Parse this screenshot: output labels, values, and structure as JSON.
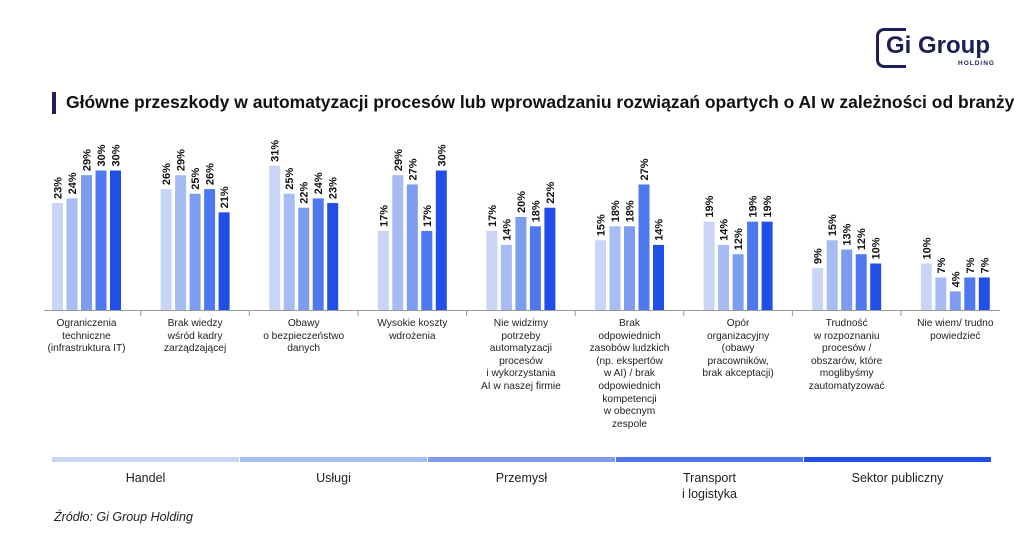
{
  "title": "Główne przeszkody w automatyzacji procesów lub wprowadzaniu rozwiązań opartych o AI w zależności od branży",
  "logo": {
    "text": "Gi Group",
    "sub": "HOLDING"
  },
  "source": "Źródło: Gi Group Holding",
  "chart_data": {
    "type": "bar",
    "title": "Główne przeszkody w automatyzacji procesów lub wprowadzaniu rozwiązań opartych o AI w zależności od branży",
    "ylim": [
      0,
      32
    ],
    "unit": "%",
    "categories": [
      "Ograniczenia\ntechniczne\n(infrastruktura IT)",
      "Brak wiedzy\nwśród kadry\nzarządzającej",
      "Obawy\no bezpieczeństwo\ndanych",
      "Wysokie koszty\nwdrożenia",
      "Nie widzimy\npotrzeby\nautomatyzacji\nprocesów\ni wykorzystania\nAI w naszej firmie",
      "Brak\nodpowiednich\nzasobów ludzkich\n(np. ekspertów\nw AI) / brak\nodpowiednich\nkompetencji\nw obecnym\nzespole",
      "Opór\norganizacyjny\n(obawy\npracowników,\nbrak akceptacji)",
      "Trudność\nw rozpoznaniu\nprocesów /\nobszarów, które\nmoglibyśmy\nzautomatyzować",
      "Nie wiem/ trudno\npowiedzieć"
    ],
    "series": [
      {
        "name": "Handel",
        "color": "#c9d5f5",
        "values": [
          23,
          26,
          31,
          17,
          17,
          15,
          19,
          9,
          10
        ]
      },
      {
        "name": "Usługi",
        "color": "#a7bcf2",
        "values": [
          24,
          29,
          25,
          29,
          14,
          18,
          14,
          15,
          7
        ]
      },
      {
        "name": "Przemysł",
        "color": "#7c9cf0",
        "values": [
          29,
          25,
          22,
          27,
          20,
          18,
          12,
          13,
          4
        ]
      },
      {
        "name": "Transport\ni logistyka",
        "color": "#4d78ee",
        "values": [
          30,
          26,
          24,
          17,
          18,
          27,
          19,
          12,
          7
        ]
      },
      {
        "name": "Sektor publiczny",
        "color": "#1f4fe6",
        "values": [
          30,
          21,
          23,
          30,
          22,
          14,
          19,
          10,
          7
        ]
      }
    ]
  }
}
